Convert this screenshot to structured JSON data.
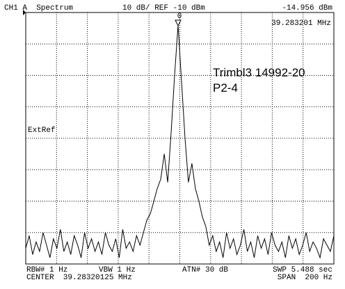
{
  "header": {
    "channel": "CH1 A  Spectrum",
    "scale": "10 dB/ REF -10 dBm",
    "marker_level": "-14.956 dBm",
    "marker_freq": "39.283201 MHz",
    "marker_id": "0"
  },
  "side_label": "ExtRef",
  "annotation": {
    "line1": "Trimbl3 14992-20",
    "line2": "P2-4"
  },
  "footer": {
    "rbw": "RBW# 1 Hz",
    "vbw": "VBW 1 Hz",
    "atn": "ATN# 30 dB",
    "swp": "SWP 5.488 sec",
    "center": "CENTER  39.28320125 MHz",
    "span": "SPAN  200 Hz"
  },
  "trace": {
    "ylim": [
      -90,
      -10
    ],
    "values": [
      -85,
      -81,
      -87,
      -83,
      -86,
      -80,
      -84,
      -88,
      -82,
      -85,
      -79,
      -86,
      -83,
      -87,
      -81,
      -84,
      -88,
      -80,
      -85,
      -82,
      -86,
      -83,
      -87,
      -80,
      -84,
      -86,
      -82,
      -88,
      -79,
      -85,
      -83,
      -86,
      -81,
      -84,
      -80,
      -76,
      -74,
      -70,
      -66,
      -63,
      -55,
      -64,
      -48,
      -30,
      -14,
      -32,
      -50,
      -64,
      -58,
      -66,
      -70,
      -75,
      -78,
      -84,
      -81,
      -86,
      -83,
      -88,
      -80,
      -85,
      -82,
      -87,
      -84,
      -79,
      -86,
      -83,
      -88,
      -81,
      -85,
      -82,
      -87,
      -80,
      -84,
      -86,
      -83,
      -88,
      -81,
      -85,
      -82,
      -87,
      -84,
      -80,
      -86,
      -83,
      -85,
      -88,
      -82,
      -84,
      -86,
      -81
    ]
  }
}
